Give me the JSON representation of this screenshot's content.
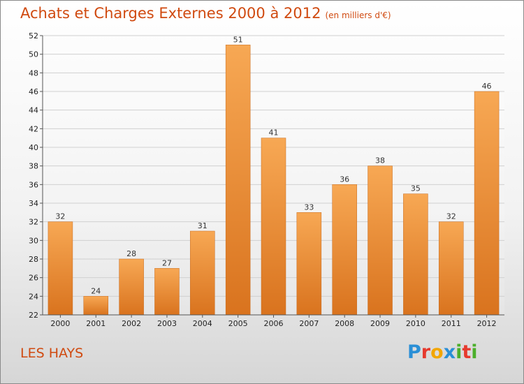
{
  "header": {
    "title": "Achats et Charges Externes 2000 à 2012",
    "unit": "(en milliers d'€)"
  },
  "footer": {
    "place": "LES HAYS",
    "logo_text": "Proxiti",
    "logo_colors": [
      "#2a8fd6",
      "#e63a2e",
      "#f2a600",
      "#2a8fd6",
      "#4caf2b",
      "#e63a2e",
      "#4caf2b"
    ]
  },
  "chart_data": {
    "type": "bar",
    "title": "Achats et Charges Externes 2000 à 2012",
    "subtitle": "(en milliers d'€)",
    "categories": [
      "2000",
      "2001",
      "2002",
      "2003",
      "2004",
      "2005",
      "2006",
      "2007",
      "2008",
      "2009",
      "2010",
      "2011",
      "2012"
    ],
    "values": [
      32,
      24,
      28,
      27,
      31,
      51,
      41,
      33,
      36,
      38,
      35,
      32,
      46
    ],
    "ylim": [
      22,
      52
    ],
    "yticks": [
      22,
      24,
      26,
      28,
      30,
      32,
      34,
      36,
      38,
      40,
      42,
      44,
      46,
      48,
      50,
      52
    ],
    "grid": true,
    "bar_color_top": "#f7a854",
    "bar_color_bottom": "#d9731e",
    "xlabel": "",
    "ylabel": ""
  }
}
